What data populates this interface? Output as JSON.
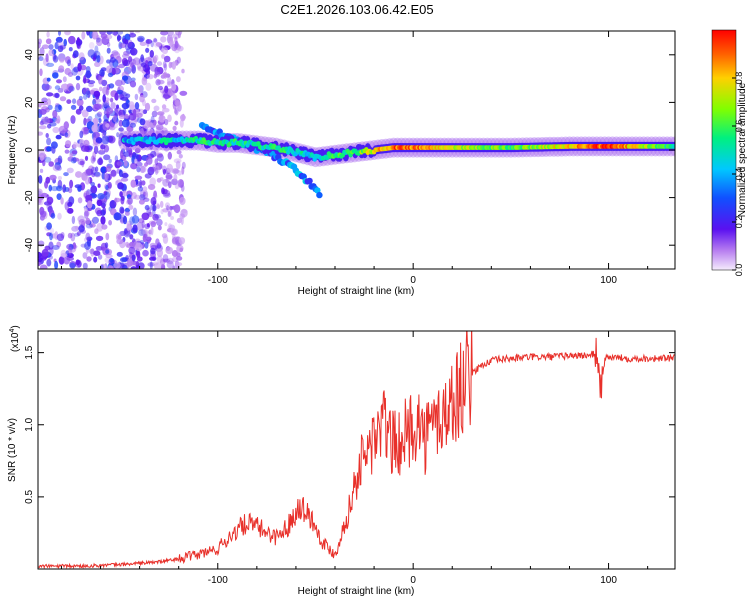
{
  "figure_title": "C2E1.2026.103.06.42.E05",
  "chart_data": [
    {
      "type": "heatmap",
      "xlabel": "Height of straight line (km)",
      "ylabel": "Frequency (Hz)",
      "xlim": [
        -192,
        134
      ],
      "ylim": [
        -50,
        50
      ],
      "xticks": [
        -100,
        0,
        100
      ],
      "xtick_labels": [
        "-100",
        "0",
        "100"
      ],
      "yticks": [
        -40,
        -20,
        0,
        20,
        40
      ],
      "ytick_labels": [
        "-40",
        "-20",
        "0",
        "20",
        "40"
      ],
      "colorbar": {
        "label": "Normalized spectral amplitude",
        "range": [
          0,
          1
        ],
        "ticks": [
          0.0,
          0.2,
          0.4,
          0.6,
          0.8
        ],
        "tick_labels": [
          "0.0",
          "0.2",
          "0.4",
          "0.6",
          "0.8"
        ]
      },
      "ridge": {
        "note": "main Doppler ridge: frequency offset (Hz) vs height (km)",
        "x": [
          -148,
          -130,
          -110,
          -100,
          -90,
          -80,
          -70,
          -60,
          -50,
          -40,
          -30,
          -20,
          -10,
          0,
          20,
          50,
          80,
          100,
          134
        ],
        "y": [
          4,
          4,
          4,
          3,
          3,
          2,
          1,
          -1,
          -3,
          -2,
          -1,
          0,
          1,
          1,
          1,
          1,
          1.5,
          1.5,
          1.5
        ],
        "amplitude": [
          0.4,
          0.45,
          0.5,
          0.55,
          0.5,
          0.5,
          0.55,
          0.5,
          0.45,
          0.55,
          0.6,
          0.75,
          0.9,
          0.9,
          0.75,
          0.6,
          0.8,
          0.95,
          0.5
        ]
      },
      "branch": {
        "note": "descending secondary branch",
        "x": [
          -108,
          -96,
          -84,
          -72,
          -62,
          -54,
          -48
        ],
        "y": [
          10,
          6,
          2,
          -2,
          -7,
          -13,
          -18
        ]
      }
    },
    {
      "type": "line",
      "xlabel": "Height of straight line (km)",
      "ylabel": "SNR (10 * v/v)",
      "y_scale_label": "(x10",
      "y_scale_exponent": "4",
      "xlim": [
        -192,
        134
      ],
      "ylim": [
        0,
        1.65
      ],
      "xticks": [
        -100,
        0,
        100
      ],
      "xtick_labels": [
        "-100",
        "0",
        "100"
      ],
      "yticks": [
        0.5,
        1.0,
        1.5
      ],
      "ytick_labels": [
        "0.5",
        "1.0",
        "1.5"
      ],
      "series": [
        {
          "name": "SNR",
          "color": "#e8302a",
          "x": [
            -192,
            -170,
            -150,
            -130,
            -120,
            -110,
            -100,
            -92,
            -85,
            -78,
            -70,
            -64,
            -58,
            -52,
            -46,
            -40,
            -34,
            -28,
            -22,
            -18,
            -14,
            -10,
            -6,
            -2,
            2,
            6,
            10,
            14,
            18,
            22,
            26,
            30,
            36,
            42,
            50,
            60,
            70,
            80,
            90,
            94,
            96,
            98,
            100,
            110,
            120,
            134
          ],
          "y": [
            0.02,
            0.02,
            0.03,
            0.05,
            0.07,
            0.1,
            0.14,
            0.25,
            0.32,
            0.28,
            0.22,
            0.3,
            0.45,
            0.35,
            0.18,
            0.1,
            0.35,
            0.7,
            0.85,
            0.95,
            1.0,
            0.85,
            0.9,
            0.95,
            1.05,
            0.9,
            1.0,
            1.05,
            1.1,
            1.2,
            1.3,
            1.36,
            1.42,
            1.45,
            1.46,
            1.47,
            1.47,
            1.48,
            1.48,
            1.5,
            1.25,
            1.45,
            1.47,
            1.46,
            1.46,
            1.46
          ]
        }
      ]
    }
  ]
}
